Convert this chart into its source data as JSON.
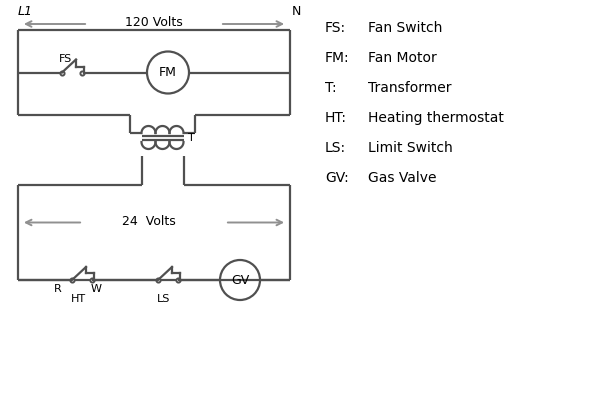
{
  "bg_color": "#ffffff",
  "line_color": "#505050",
  "arrow_color": "#909090",
  "legend": [
    [
      "FS:",
      "Fan Switch"
    ],
    [
      "FM:",
      "Fan Motor"
    ],
    [
      "T:",
      "Transformer"
    ],
    [
      "HT:",
      "Heating thermostat"
    ],
    [
      "LS:",
      "Limit Switch"
    ],
    [
      "GV:",
      "Gas Valve"
    ]
  ],
  "label_L1": "L1",
  "label_N": "N",
  "label_120V": "120 Volts",
  "label_24V": "24  Volts",
  "label_T": "T"
}
